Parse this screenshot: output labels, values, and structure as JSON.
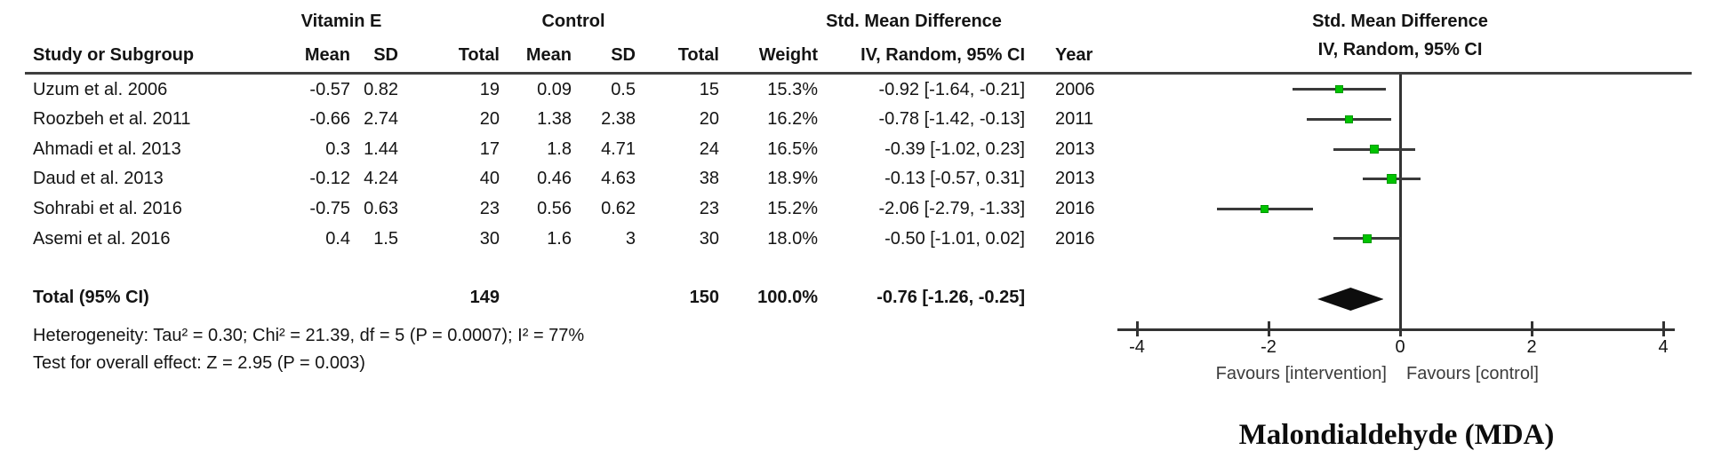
{
  "table": {
    "group_headers": {
      "experimental": "Vitamin E",
      "control": "Control",
      "effect": "Std. Mean Difference"
    },
    "columns": {
      "study": "Study or Subgroup",
      "mean": "Mean",
      "sd": "SD",
      "total": "Total",
      "mean2": "Mean",
      "sd2": "SD",
      "total2": "Total",
      "weight": "Weight",
      "effect_method": "IV, Random, 95% CI",
      "year": "Year"
    },
    "rows": [
      {
        "study": "Uzum et al. 2006",
        "e_mean": "-0.57",
        "e_sd": "0.82",
        "e_total": "19",
        "c_mean": "0.09",
        "c_sd": "0.5",
        "c_total": "15",
        "weight": "15.3%",
        "ci": "-0.92 [-1.64, -0.21]",
        "year": "2006"
      },
      {
        "study": "Roozbeh et al. 2011",
        "e_mean": "-0.66",
        "e_sd": "2.74",
        "e_total": "20",
        "c_mean": "1.38",
        "c_sd": "2.38",
        "c_total": "20",
        "weight": "16.2%",
        "ci": "-0.78 [-1.42, -0.13]",
        "year": "2011"
      },
      {
        "study": "Ahmadi et al. 2013",
        "e_mean": "0.3",
        "e_sd": "1.44",
        "e_total": "17",
        "c_mean": "1.8",
        "c_sd": "4.71",
        "c_total": "24",
        "weight": "16.5%",
        "ci": "-0.39 [-1.02, 0.23]",
        "year": "2013"
      },
      {
        "study": "Daud et al. 2013",
        "e_mean": "-0.12",
        "e_sd": "4.24",
        "e_total": "40",
        "c_mean": "0.46",
        "c_sd": "4.63",
        "c_total": "38",
        "weight": "18.9%",
        "ci": "-0.13 [-0.57, 0.31]",
        "year": "2013"
      },
      {
        "study": "Sohrabi et al. 2016",
        "e_mean": "-0.75",
        "e_sd": "0.63",
        "e_total": "23",
        "c_mean": "0.56",
        "c_sd": "0.62",
        "c_total": "23",
        "weight": "15.2%",
        "ci": "-2.06 [-2.79, -1.33]",
        "year": "2016"
      },
      {
        "study": "Asemi et al. 2016",
        "e_mean": "0.4",
        "e_sd": "1.5",
        "e_total": "30",
        "c_mean": "1.6",
        "c_sd": "3",
        "c_total": "30",
        "weight": "18.0%",
        "ci": "-0.50 [-1.01, 0.02]",
        "year": "2016"
      }
    ],
    "total_row": {
      "label": "Total (95% CI)",
      "e_total": "149",
      "c_total": "150",
      "weight": "100.0%",
      "ci": "-0.76 [-1.26, -0.25]"
    },
    "heterogeneity": "Heterogeneity: Tau² = 0.30; Chi² = 21.39, df = 5 (P = 0.0007); I² = 77%",
    "overall_effect": "Test for overall effect: Z = 2.95 (P = 0.003)"
  },
  "chart_data": {
    "type": "forest",
    "title": "Std. Mean Difference",
    "subtitle": "IV, Random, 95% CI",
    "x_axis": {
      "min": -4,
      "max": 4,
      "ticks": [
        -4,
        -2,
        0,
        2,
        4
      ]
    },
    "favours_left": "Favours [intervention]",
    "favours_right": "Favours [control]",
    "caption": "Malondialdehyde (MDA)",
    "marker_color": "#00c300",
    "line_color": "#3a3a3a",
    "diamond_color": "#0d0d0d",
    "studies": [
      {
        "name": "Uzum et al. 2006",
        "est": -0.92,
        "ci_low": -1.64,
        "ci_high": -0.21,
        "weight_pct": 15.3
      },
      {
        "name": "Roozbeh et al. 2011",
        "est": -0.78,
        "ci_low": -1.42,
        "ci_high": -0.13,
        "weight_pct": 16.2
      },
      {
        "name": "Ahmadi et al. 2013",
        "est": -0.39,
        "ci_low": -1.02,
        "ci_high": 0.23,
        "weight_pct": 16.5
      },
      {
        "name": "Daud et al. 2013",
        "est": -0.13,
        "ci_low": -0.57,
        "ci_high": 0.31,
        "weight_pct": 18.9
      },
      {
        "name": "Sohrabi et al. 2016",
        "est": -2.06,
        "ci_low": -2.79,
        "ci_high": -1.33,
        "weight_pct": 15.2
      },
      {
        "name": "Asemi et al. 2016",
        "est": -0.5,
        "ci_low": -1.01,
        "ci_high": 0.02,
        "weight_pct": 18.0
      }
    ],
    "pooled": {
      "est": -0.76,
      "ci_low": -1.26,
      "ci_high": -0.25
    }
  }
}
